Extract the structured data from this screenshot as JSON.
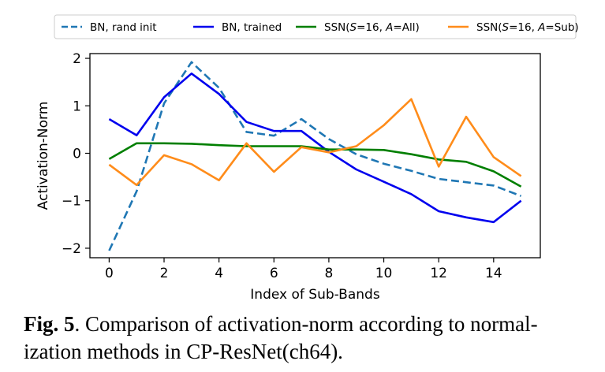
{
  "chart_data": {
    "type": "line",
    "title": "",
    "xlabel": "Index of Sub-Bands",
    "ylabel": "Activation-Norm",
    "xlim": [
      -0.7,
      15.7
    ],
    "ylim": [
      -2.2,
      2.1
    ],
    "xticks": [
      0,
      2,
      4,
      6,
      8,
      10,
      12,
      14
    ],
    "yticks": [
      -2,
      -1,
      0,
      1,
      2
    ],
    "ytick_labels": [
      "−2",
      "−1",
      "0",
      "1",
      "2"
    ],
    "grid": false,
    "legend_position": "top",
    "x": [
      0,
      1,
      2,
      3,
      4,
      5,
      6,
      7,
      8,
      9,
      10,
      11,
      12,
      13,
      14,
      15
    ],
    "series": [
      {
        "name_parts": [
          {
            "t": "BN, rand init"
          }
        ],
        "color": "#1f77b4",
        "dash": true,
        "values": [
          -2.05,
          -0.8,
          1.05,
          1.92,
          1.38,
          0.45,
          0.37,
          0.72,
          0.3,
          -0.02,
          -0.22,
          -0.37,
          -0.54,
          -0.61,
          -0.68,
          -0.9
        ]
      },
      {
        "name_parts": [
          {
            "t": "BN, trained"
          }
        ],
        "color": "#0000ee",
        "dash": false,
        "values": [
          0.72,
          0.38,
          1.18,
          1.68,
          1.25,
          0.66,
          0.47,
          0.47,
          0.03,
          -0.34,
          -0.6,
          -0.86,
          -1.22,
          -1.35,
          -1.45,
          -1.0
        ]
      },
      {
        "name_parts": [
          {
            "t": "SSN("
          },
          {
            "t": "S",
            "i": true
          },
          {
            "t": "=16, "
          },
          {
            "t": "A",
            "i": true
          },
          {
            "t": "=All)"
          }
        ],
        "color": "#007f00",
        "dash": false,
        "values": [
          -0.12,
          0.21,
          0.21,
          0.2,
          0.17,
          0.15,
          0.15,
          0.15,
          0.08,
          0.08,
          0.07,
          -0.02,
          -0.13,
          -0.18,
          -0.38,
          -0.7
        ]
      },
      {
        "name_parts": [
          {
            "t": "SSN("
          },
          {
            "t": "S",
            "i": true
          },
          {
            "t": "=16, "
          },
          {
            "t": "A",
            "i": true
          },
          {
            "t": "=Sub)"
          }
        ],
        "color": "#ff8c1a",
        "dash": false,
        "values": [
          -0.24,
          -0.67,
          -0.04,
          -0.23,
          -0.57,
          0.21,
          -0.39,
          0.13,
          0.02,
          0.15,
          0.59,
          1.14,
          -0.28,
          0.77,
          -0.08,
          -0.48
        ]
      }
    ]
  },
  "caption": {
    "label": "Fig. 5",
    "text": ". Comparison of activation-norm according to normal-ization methods in CP-ResNet(ch64)."
  }
}
